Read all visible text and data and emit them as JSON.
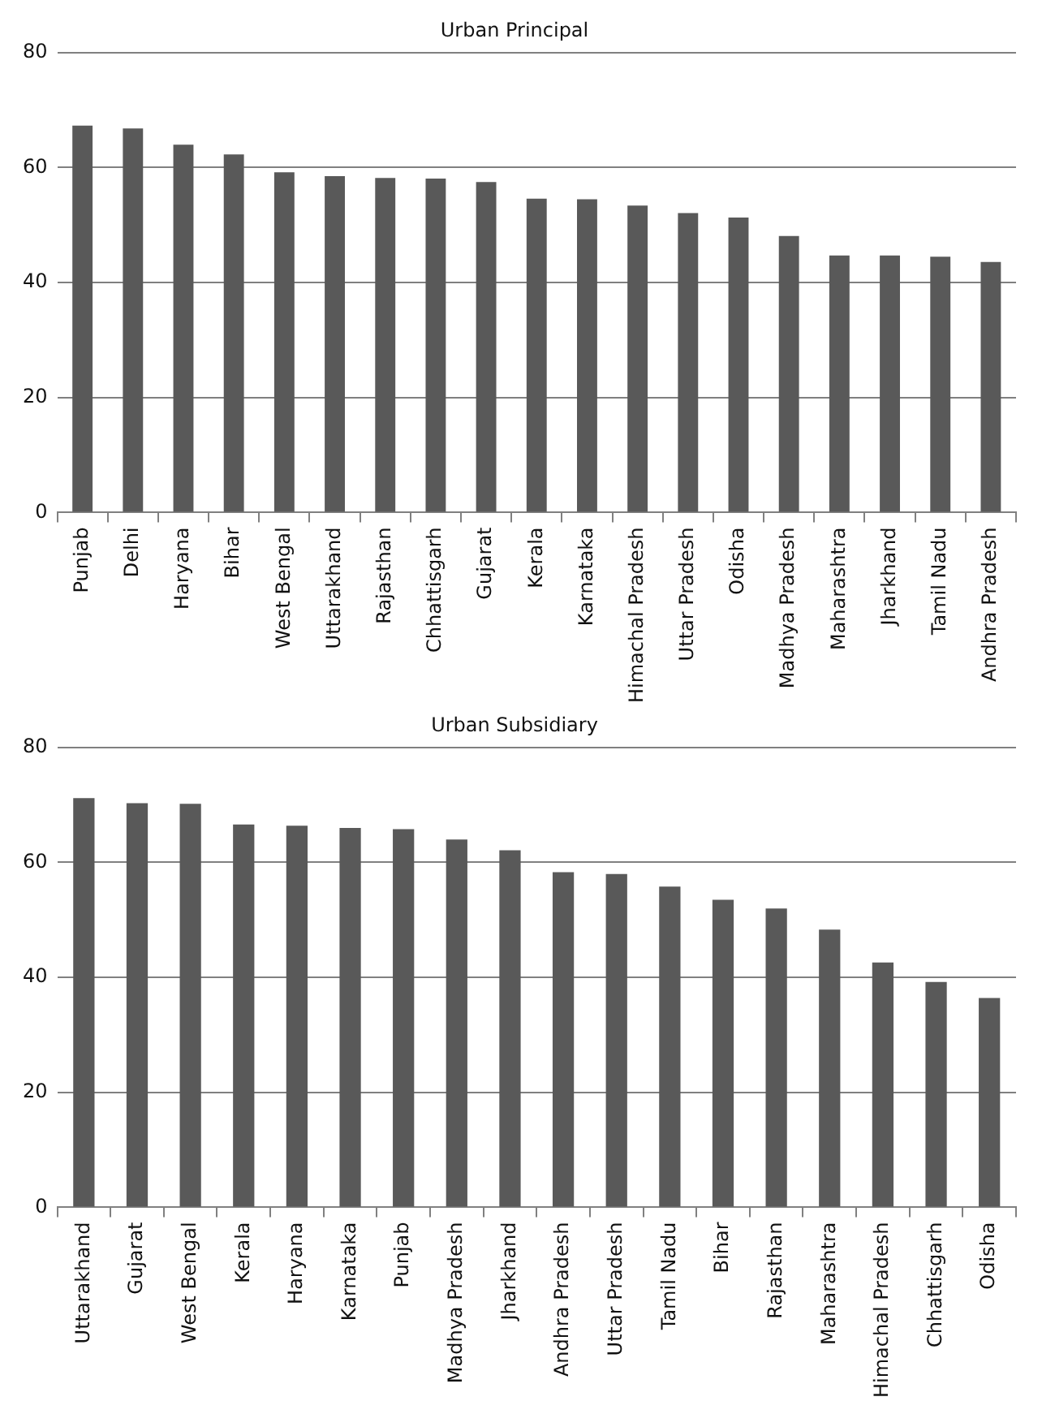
{
  "chart_data": [
    {
      "type": "bar",
      "title": "Urban Principal",
      "categories": [
        "Punjab",
        "Delhi",
        "Haryana",
        "Bihar",
        "West Bengal",
        "Uttarakhand",
        "Rajasthan",
        "Chhattisgarh",
        "Gujarat",
        "Kerala",
        "Karnataka",
        "Himachal Pradesh",
        "Uttar Pradesh",
        "Odisha",
        "Madhya Pradesh",
        "Maharashtra",
        "Jharkhand",
        "Tamil Nadu",
        "Andhra Pradesh"
      ],
      "values": [
        67.3,
        66.8,
        64.0,
        62.3,
        59.2,
        58.5,
        58.2,
        58.1,
        57.5,
        54.6,
        54.5,
        53.4,
        52.1,
        51.3,
        48.1,
        44.7,
        44.7,
        44.5,
        43.6
      ],
      "color": "#595959",
      "ylim": [
        0,
        80
      ],
      "yticks": [
        0,
        20,
        40,
        60,
        80
      ],
      "grid": "y",
      "legend": false
    },
    {
      "type": "bar",
      "title": "Urban Subsidiary",
      "categories": [
        "Uttarakhand",
        "Gujarat",
        "West Bengal",
        "Kerala",
        "Haryana",
        "Karnataka",
        "Punjab",
        "Madhya Pradesh",
        "Jharkhand",
        "Andhra Pradesh",
        "Uttar Pradesh",
        "Tamil Nadu",
        "Bihar",
        "Rajasthan",
        "Maharashtra",
        "Himachal Pradesh",
        "Chhattisgarh",
        "Odisha"
      ],
      "values": [
        71.2,
        70.3,
        70.2,
        66.6,
        66.4,
        66.0,
        65.8,
        64.0,
        62.1,
        58.3,
        58.0,
        55.8,
        53.5,
        52.0,
        48.3,
        42.6,
        39.2,
        36.4
      ],
      "color": "#595959",
      "ylim": [
        0,
        80
      ],
      "yticks": [
        0,
        20,
        40,
        60,
        80
      ],
      "grid": "y",
      "legend": false
    }
  ]
}
